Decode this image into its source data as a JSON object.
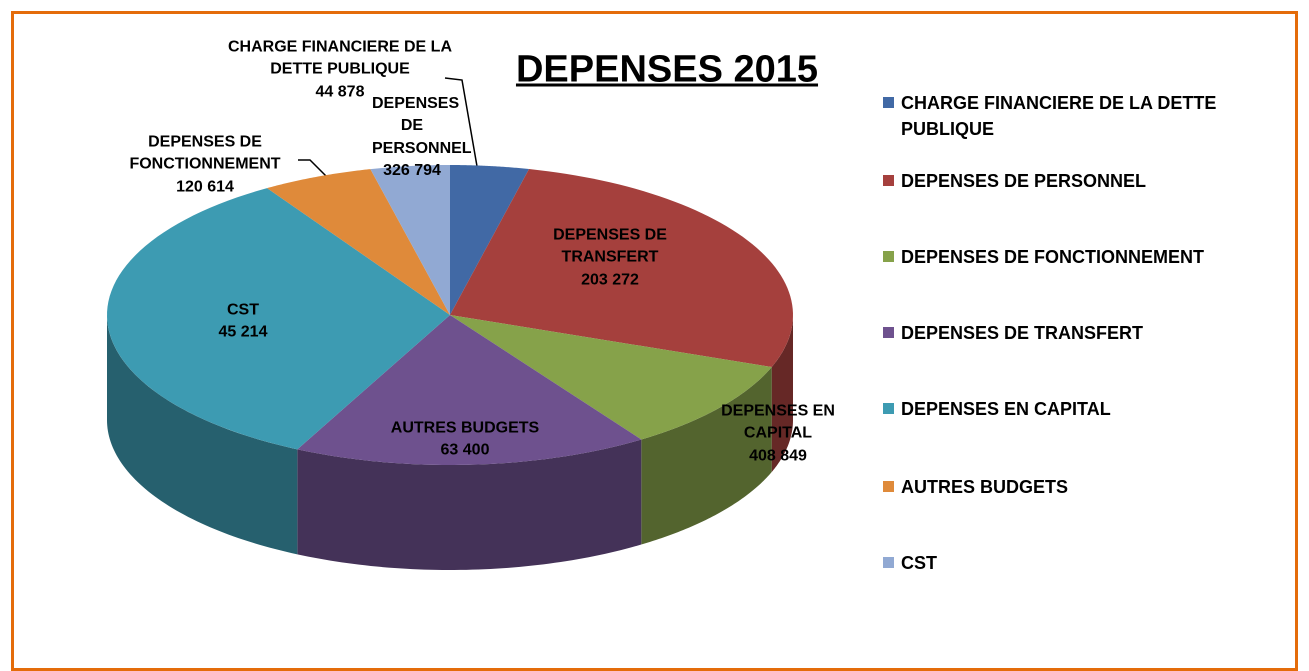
{
  "chart_data": {
    "type": "pie",
    "title": "DEPENSES 2015",
    "categories": [
      "CHARGE FINANCIERE DE LA DETTE PUBLIQUE",
      "DEPENSES DE PERSONNEL",
      "DEPENSES DE FONCTIONNEMENT",
      "DEPENSES DE TRANSFERT",
      "DEPENSES EN CAPITAL",
      "AUTRES BUDGETS",
      "CST"
    ],
    "values": [
      44878,
      326794,
      120614,
      203272,
      408849,
      63400,
      45214
    ],
    "value_labels": [
      "44 878",
      "326 794",
      "120 614",
      "203 272",
      "408 849",
      "63 400",
      "45 214"
    ],
    "colors": [
      "#4169a5",
      "#a5403d",
      "#86a24a",
      "#6e518e",
      "#3d9bb2",
      "#df8a3a",
      "#91a9d3"
    ],
    "legend": "right"
  }
}
